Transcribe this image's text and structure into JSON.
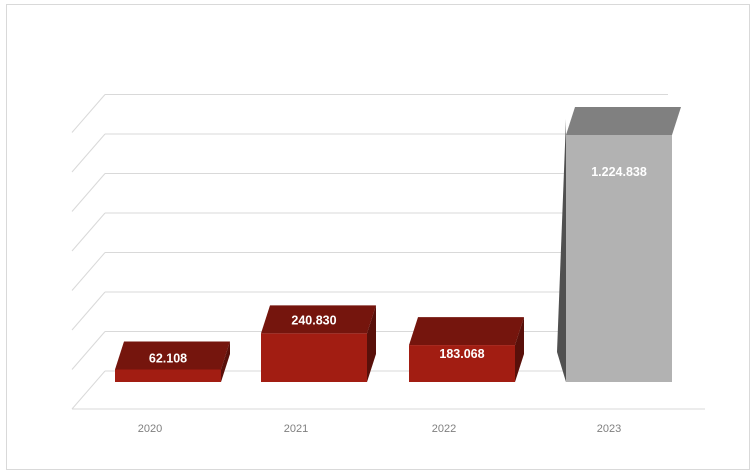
{
  "chart_data": {
    "type": "bar",
    "title": "",
    "xlabel": "",
    "ylabel": "",
    "categories": [
      "2020",
      "2021",
      "2022",
      "2023"
    ],
    "values": [
      62108,
      240830,
      183068,
      1224838
    ],
    "data_labels": [
      "62.108",
      "240.830",
      "183.068",
      "1.224.838"
    ],
    "ylim": [
      0,
      1400000
    ],
    "grid": true,
    "legend": "none",
    "style": "3d-column",
    "colors": {
      "2020": "#a21d12",
      "2021": "#a21d12",
      "2022": "#a21d12",
      "2023": "#b2b2b2"
    }
  }
}
